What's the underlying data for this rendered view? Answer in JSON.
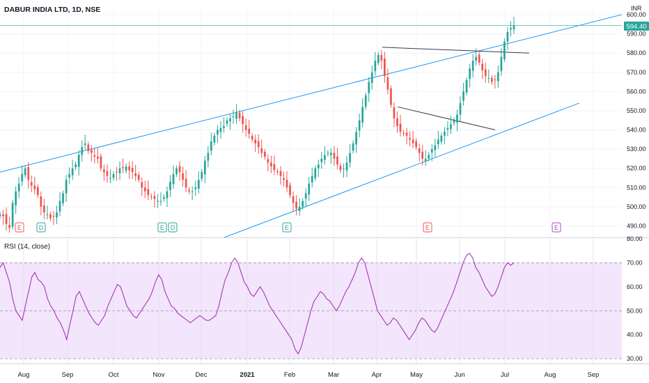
{
  "header": {
    "symbol_title": "DABUR INDIA LTD, 1D, NSE",
    "currency": "INR",
    "last_price": "594.40",
    "rsi_label": "RSI (14, close)"
  },
  "colors": {
    "up": "#26a69a",
    "down": "#ef5350",
    "trendline_blue": "#2196f3",
    "trendline_dark": "#363a45",
    "rsi_line": "#9c27b0",
    "rsi_band": "#f3e5fb",
    "price_tag": "#26a69a",
    "earnings_badge": "#ef5350",
    "earnings_teal": "#26a69a",
    "dividend_badge": "#26a69a",
    "event_purple": "#ab47bc"
  },
  "chart_data": [
    {
      "type": "candlestick",
      "title": "DABUR INDIA LTD, 1D, NSE",
      "ylabel": "INR",
      "ylim": [
        484,
        604
      ],
      "y_ticks": [
        "600.00",
        "590.00",
        "580.00",
        "570.00",
        "560.00",
        "550.00",
        "540.00",
        "530.00",
        "520.00",
        "510.00",
        "500.00",
        "490.00"
      ],
      "x_ticks": [
        "Aug",
        "Sep",
        "Oct",
        "Nov",
        "Dec",
        "2021",
        "Feb",
        "Mar",
        "Apr",
        "May",
        "Jun",
        "Jul",
        "Aug",
        "Sep"
      ],
      "last_price": 594.4,
      "approx_closes": [
        496,
        495,
        491,
        489,
        502,
        508,
        512,
        517,
        520,
        514,
        511,
        509,
        506,
        500,
        497,
        496,
        494,
        495,
        497,
        503,
        507,
        514,
        517,
        520,
        522,
        527,
        531,
        533,
        529,
        528,
        526,
        525,
        520,
        518,
        516,
        515,
        517,
        518,
        520,
        520,
        521,
        519,
        518,
        516,
        514,
        510,
        508,
        506,
        505,
        504,
        503,
        503,
        505,
        508,
        513,
        517,
        520,
        518,
        514,
        510,
        508,
        508,
        510,
        514,
        518,
        524,
        528,
        534,
        537,
        540,
        541,
        542,
        545,
        546,
        547,
        549,
        546,
        543,
        540,
        538,
        535,
        533,
        531,
        528,
        526,
        523,
        521,
        519,
        518,
        516,
        514,
        510,
        506,
        502,
        499,
        500,
        503,
        507,
        512,
        516,
        520,
        522,
        525,
        527,
        528,
        528,
        525,
        522,
        519,
        520,
        523,
        528,
        533,
        539,
        545,
        552,
        558,
        565,
        570,
        576,
        579,
        576,
        568,
        561,
        553,
        546,
        542,
        539,
        538,
        537,
        535,
        533,
        531,
        528,
        525,
        525,
        527,
        530,
        532,
        535,
        537,
        539,
        541,
        543,
        545,
        548,
        554,
        560,
        566,
        572,
        576,
        578,
        575,
        571,
        568,
        567,
        565,
        566,
        570,
        578,
        586,
        591,
        593,
        594.4
      ],
      "events": [
        {
          "label": "E",
          "kind": "earnings",
          "month": "Aug"
        },
        {
          "label": "D",
          "kind": "dividend",
          "month": "Aug"
        },
        {
          "label": "E",
          "kind": "earnings",
          "month": "Nov"
        },
        {
          "label": "D",
          "kind": "dividend",
          "month": "Nov"
        },
        {
          "label": "E",
          "kind": "earnings",
          "month": "Feb"
        },
        {
          "label": "E",
          "kind": "earnings",
          "month": "May"
        },
        {
          "label": "E",
          "kind": "earnings",
          "month": "Aug"
        }
      ]
    },
    {
      "type": "line",
      "title": "RSI (14, close)",
      "ylim": [
        28,
        80
      ],
      "y_ticks": [
        "80.00",
        "70.00",
        "60.00",
        "50.00",
        "40.00",
        "30.00"
      ],
      "bands": [
        30,
        50,
        70
      ],
      "values": [
        68,
        70,
        66,
        62,
        55,
        50,
        48,
        46,
        52,
        58,
        64,
        66,
        63,
        62,
        60,
        55,
        52,
        50,
        47,
        45,
        42,
        38,
        44,
        50,
        56,
        58,
        55,
        52,
        49,
        47,
        45,
        44,
        46,
        48,
        52,
        55,
        58,
        61,
        60,
        56,
        52,
        50,
        48,
        47,
        49,
        51,
        53,
        55,
        58,
        62,
        65,
        63,
        58,
        55,
        52,
        51,
        49,
        48,
        47,
        46,
        45,
        46,
        47,
        48,
        47,
        46,
        46,
        47,
        48,
        52,
        58,
        63,
        66,
        70,
        72,
        70,
        66,
        62,
        60,
        57,
        56,
        58,
        60,
        58,
        55,
        52,
        50,
        48,
        46,
        44,
        42,
        40,
        38,
        34,
        32,
        35,
        40,
        45,
        50,
        54,
        56,
        58,
        57,
        55,
        54,
        52,
        50,
        52,
        55,
        58,
        60,
        63,
        66,
        70,
        72,
        70,
        65,
        60,
        55,
        50,
        48,
        46,
        44,
        45,
        47,
        46,
        44,
        42,
        40,
        38,
        40,
        42,
        45,
        47,
        46,
        44,
        42,
        41,
        43,
        46,
        49,
        52,
        55,
        58,
        62,
        66,
        70,
        73,
        74,
        72,
        68,
        66,
        63,
        60,
        58,
        56,
        57,
        60,
        64,
        68,
        70,
        69,
        70
      ]
    }
  ]
}
